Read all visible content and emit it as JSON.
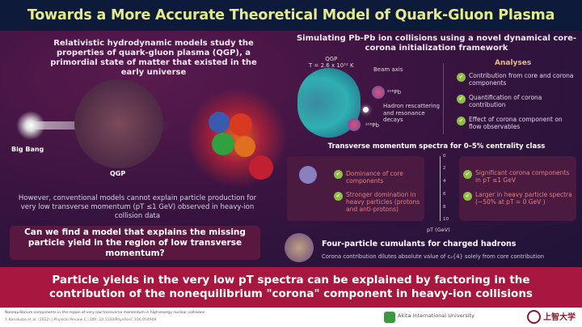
{
  "title": "Towards a More Accurate Theoretical Model of Quark-Gluon Plasma",
  "left": {
    "intro": "Relativistic hydrodynamic models study the properties of quark-gluon plasma (QGP), a primordial state of matter that existed in the early universe",
    "big_bang": "Big Bang",
    "qgp": "QGP",
    "however": "However, conventional models cannot explain particle production for very low transverse momentum (pT ≤1 GeV) observed in heavy-ion collision data",
    "question": "Can we find a model that explains the missing particle yield in the region of low transverse momentum?"
  },
  "right": {
    "heading": "Simulating Pb-Pb ion collisions using a novel dynamical core-corona initialization framework",
    "qgp": "QGP",
    "temp": "T = 2.6 x 10¹² K",
    "beam_axis": "Beam axis",
    "pb1": "²⁰⁸Pb",
    "pb2": "²⁰⁸Pb",
    "hadron": "Hadron rescattering and resonance decays",
    "analyses_title": "Analyses",
    "analyses": [
      "Contribution from core and corona components",
      "Quantification of corona contribution",
      "Effect of corona component on flow observables"
    ],
    "spectra_title": "Transverse momentum spectra for 0–5% centrality class",
    "left_points": [
      "Dominance of core components",
      "Stronger domination in heavy particles (protons and anti-protons)"
    ],
    "right_points": [
      "Significant corona components in pT ≤1 GeV",
      "Larger in heavy particle spectra (~50% at pT = 0 GeV )"
    ],
    "axis_ticks": [
      "0",
      "2",
      "4",
      "6",
      "8",
      "10"
    ],
    "axis_label": "pT (GeV)",
    "cumulant_title": "Four-particle cumulants for charged hadrons",
    "cumulant_text": "Corona contribution dilutes absolute value of c₂{4} solely from core contribution"
  },
  "banner": "Particle yields in the very low pT spectra can be explained by factoring in the contribution of the nonequilibrium \"corona\" component in heavy-ion collisions",
  "footer": {
    "ref_title": "Nonequilibrium components in the region of very low transverse momentum in high-energy nuclear collisions",
    "ref_citation": "Y. Kanakubo et al. (2022) | Physical Review C | DOI: 10.1103/PhysRevC.106.054908",
    "akita": "Akita International University",
    "sophia": "上智大学"
  },
  "colors": {
    "title": "#e4ea8a",
    "banner": "#a8183e",
    "check": "#8cc040",
    "analyses": "#e6c070"
  }
}
